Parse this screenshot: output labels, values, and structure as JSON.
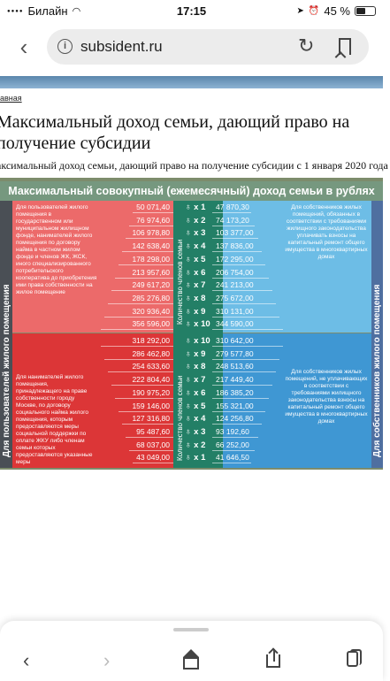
{
  "status_bar": {
    "carrier": "Билайн",
    "time": "17:15",
    "battery": "45 %"
  },
  "browser": {
    "url": "subsident.ru"
  },
  "page": {
    "breadcrumb": "авная",
    "title": "Максимальный доход семьи, дающий право на получение субсидии",
    "subtitle": "аксимальный доход семьи, дающий право на получение субсидии с 1 января 2020 года"
  },
  "infographic": {
    "banner": "Максимальный совокупный (ежемесячный) доход семьи в рублях",
    "left_side_label": "Для пользователей жилого помещения",
    "right_side_label": "Для собственников жилого помещения",
    "count_label": "Количество членов семьи",
    "count_prefix": "x",
    "top_left_desc": "Для пользователей жилого помещения в государственном или муниципальном жилищном фонде, нанимателей жилого помещения по договору найма в частном жилом фонде и членов ЖК, ЖСК, иного специализированного потребительского кооператива до приобретения ими права собственности на жилое помещение",
    "bottom_left_desc": "Для нанимателей жилого помещения, принадлежащего на праве собственности городу Москве, по договору социального найма жилого помещения, которым предоставляются меры социальной поддержки по оплате ЖКУ либо членам семьи которых предоставляются указанные меры",
    "top_right_desc": "Для собственников жилых помещений, обязанных в соответствии с требованиями жилищного законодательства уплачивать взносы на капитальный ремонт общего имущества в многоквартирных домах",
    "bottom_right_desc": "Для собственников жилых помещений, не уплачивающих в соответствии с требованиями жилищного законодательства взносы на капитальный ремонт общего имущества в многоквартирных домах",
    "top_rows": [
      {
        "left": "50 071,40",
        "count": "1",
        "right": "47 870,30"
      },
      {
        "left": "76 974,60",
        "count": "2",
        "right": "74 173,20"
      },
      {
        "left": "106 978,80",
        "count": "3",
        "right": "103 377,00"
      },
      {
        "left": "142 638,40",
        "count": "4",
        "right": "137 836,00"
      },
      {
        "left": "178 298,00",
        "count": "5",
        "right": "172 295,00"
      },
      {
        "left": "213 957,60",
        "count": "6",
        "right": "206 754,00"
      },
      {
        "left": "249 617,20",
        "count": "7",
        "right": "241 213,00"
      },
      {
        "left": "285 276,80",
        "count": "8",
        "right": "275 672,00"
      },
      {
        "left": "320 936,40",
        "count": "9",
        "right": "310 131,00"
      },
      {
        "left": "356 596,00",
        "count": "10",
        "right": "344 590,00"
      }
    ],
    "bottom_rows": [
      {
        "left": "318 292,00",
        "count": "10",
        "right": "310 642,00"
      },
      {
        "left": "286 462,80",
        "count": "9",
        "right": "279 577,80"
      },
      {
        "left": "254 633,60",
        "count": "8",
        "right": "248 513,60"
      },
      {
        "left": "222 804,40",
        "count": "7",
        "right": "217 449,40"
      },
      {
        "left": "190 975,20",
        "count": "6",
        "right": "186 385,20"
      },
      {
        "left": "159 146,00",
        "count": "5",
        "right": "155 321,00"
      },
      {
        "left": "127 316,80",
        "count": "4",
        "right": "124 256,80"
      },
      {
        "left": "95 487,60",
        "count": "3",
        "right": "93 192,60"
      },
      {
        "left": "68 037,00",
        "count": "2",
        "right": "66 252,00"
      },
      {
        "left": "43 049,00",
        "count": "1",
        "right": "41 646,50"
      }
    ]
  },
  "toolbar": {
    "icons": [
      "back-icon",
      "forward-icon",
      "home-icon",
      "share-icon",
      "tabs-icon"
    ]
  }
}
